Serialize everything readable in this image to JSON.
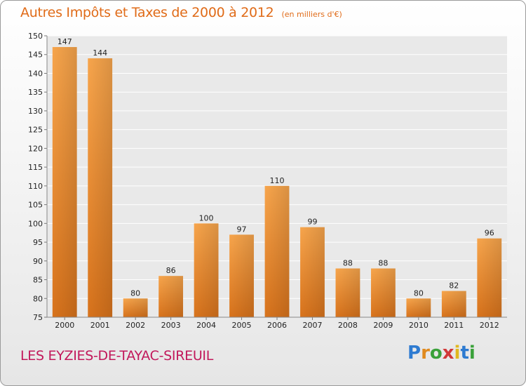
{
  "title": "Autres Impôts et Taxes de 2000 à 2012",
  "subtitle": "(en milliers d'€)",
  "commune": "LES EYZIES-DE-TAYAC-SIREUIL",
  "logo": {
    "text": "Proxiti",
    "letters": [
      "P",
      "r",
      "o",
      "x",
      "i",
      "t",
      "i"
    ],
    "colors": [
      "#2e7bd1",
      "#e08a1e",
      "#3aa13a",
      "#d13838",
      "#e0b81e",
      "#2e7bd1",
      "#3aa13a"
    ]
  },
  "colors": {
    "bar_light": "#f7a54c",
    "bar_dark": "#d8731c",
    "accent": "#e06b18",
    "commune": "#c2185b"
  },
  "chart_data": {
    "type": "bar",
    "categories": [
      "2000",
      "2001",
      "2002",
      "2003",
      "2004",
      "2005",
      "2006",
      "2007",
      "2008",
      "2009",
      "2010",
      "2011",
      "2012"
    ],
    "values": [
      147,
      144,
      80,
      86,
      100,
      97,
      110,
      99,
      88,
      88,
      80,
      82,
      96
    ],
    "ylim": [
      75,
      150
    ],
    "yticks": [
      75,
      80,
      85,
      90,
      95,
      100,
      105,
      110,
      115,
      120,
      125,
      130,
      135,
      140,
      145,
      150
    ],
    "grid": true,
    "xlabel": "",
    "ylabel": ""
  }
}
